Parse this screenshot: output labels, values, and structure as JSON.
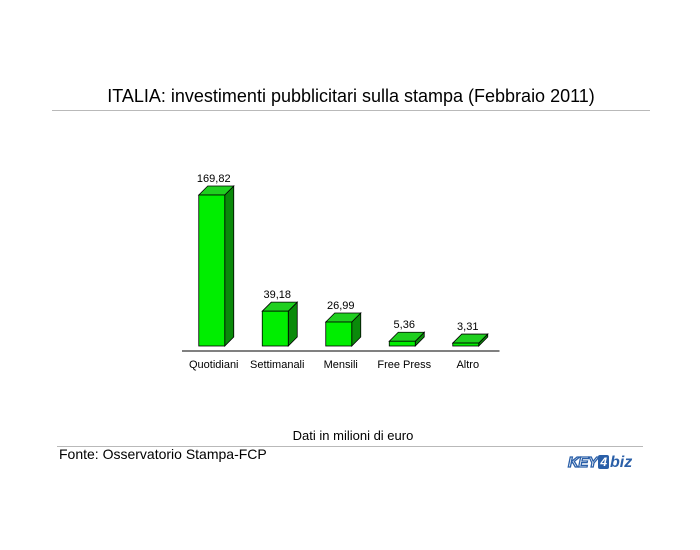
{
  "title": "ITALIA: investimenti pubblicitari sulla stampa (Febbraio 2011)",
  "units_note": "Dati in milioni di euro",
  "source": "Fonte: Osservatorio Stampa-FCP",
  "logo": {
    "key": "KEY",
    "four": "4",
    "biz": "biz"
  },
  "colors": {
    "bar_front": "#00ee00",
    "bar_top": "#1fcf1f",
    "bar_side": "#0a8a0a",
    "outline": "#000000"
  },
  "chart_data": {
    "type": "bar",
    "categories": [
      "Quotidiani",
      "Settimanali",
      "Mensili",
      "Free Press",
      "Altro"
    ],
    "values": [
      169.82,
      39.18,
      26.99,
      5.36,
      3.31
    ],
    "value_labels": [
      "169,82",
      "39,18",
      "26,99",
      "5,36",
      "3,31"
    ],
    "ylim": [
      0,
      180
    ],
    "grid": false,
    "style": "3d-column"
  }
}
